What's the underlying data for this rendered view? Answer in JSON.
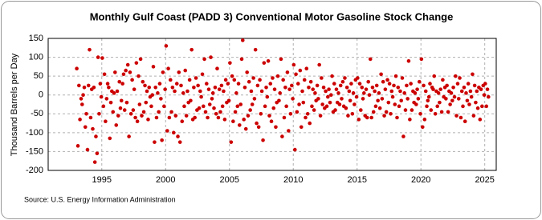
{
  "chart_data": {
    "type": "scatter",
    "title": "Monthly Gulf Coast (PADD 3) Conventional Motor Gasoline Stock Change",
    "y_label": "Thousand Barrels per Day",
    "source": "Source: U.S. Energy Information Administration",
    "color": "#cc0000",
    "grid": true,
    "xlim": [
      1990.8,
      2025.9
    ],
    "xticks": [
      1995,
      2000,
      2005,
      2010,
      2015,
      2020,
      2025
    ],
    "ylim": [
      -200,
      150
    ],
    "yticks": [
      -200,
      -150,
      -100,
      -50,
      0,
      50,
      100,
      150
    ],
    "x": [
      1993.04,
      1993.13,
      1993.21,
      1993.29,
      1993.38,
      1993.46,
      1993.54,
      1993.63,
      1993.71,
      1993.79,
      1993.88,
      1993.96,
      1994.04,
      1994.13,
      1994.21,
      1994.29,
      1994.38,
      1994.46,
      1994.54,
      1994.63,
      1994.71,
      1994.79,
      1994.88,
      1994.96,
      1995.04,
      1995.13,
      1995.21,
      1995.29,
      1995.38,
      1995.46,
      1995.54,
      1995.63,
      1995.71,
      1995.79,
      1995.88,
      1995.96,
      1996.04,
      1996.13,
      1996.21,
      1996.29,
      1996.38,
      1996.46,
      1996.54,
      1996.63,
      1996.71,
      1996.79,
      1996.88,
      1996.96,
      1997.04,
      1997.13,
      1997.21,
      1997.29,
      1997.38,
      1997.46,
      1997.54,
      1997.63,
      1997.71,
      1997.79,
      1997.88,
      1997.96,
      1998.04,
      1998.13,
      1998.21,
      1998.29,
      1998.38,
      1998.46,
      1998.54,
      1998.63,
      1998.71,
      1998.79,
      1998.88,
      1998.96,
      1999.04,
      1999.13,
      1999.21,
      1999.29,
      1999.38,
      1999.46,
      1999.54,
      1999.63,
      1999.71,
      1999.79,
      1999.88,
      1999.96,
      2000.04,
      2000.13,
      2000.21,
      2000.29,
      2000.38,
      2000.46,
      2000.54,
      2000.63,
      2000.71,
      2000.79,
      2000.88,
      2000.96,
      2001.04,
      2001.13,
      2001.21,
      2001.29,
      2001.38,
      2001.46,
      2001.54,
      2001.63,
      2001.71,
      2001.79,
      2001.88,
      2001.96,
      2002.04,
      2002.13,
      2002.21,
      2002.29,
      2002.38,
      2002.46,
      2002.54,
      2002.63,
      2002.71,
      2002.79,
      2002.88,
      2002.96,
      2003.04,
      2003.13,
      2003.21,
      2003.29,
      2003.38,
      2003.46,
      2003.54,
      2003.63,
      2003.71,
      2003.79,
      2003.88,
      2003.96,
      2004.04,
      2004.13,
      2004.21,
      2004.29,
      2004.38,
      2004.46,
      2004.54,
      2004.63,
      2004.71,
      2004.79,
      2004.88,
      2004.96,
      2005.04,
      2005.13,
      2005.21,
      2005.29,
      2005.38,
      2005.46,
      2005.54,
      2005.63,
      2005.71,
      2005.79,
      2005.88,
      2005.96,
      2006.04,
      2006.13,
      2006.21,
      2006.29,
      2006.38,
      2006.46,
      2006.54,
      2006.63,
      2006.71,
      2006.79,
      2006.88,
      2006.96,
      2007.04,
      2007.13,
      2007.21,
      2007.29,
      2007.38,
      2007.46,
      2007.54,
      2007.63,
      2007.71,
      2007.79,
      2007.88,
      2007.96,
      2008.04,
      2008.13,
      2008.21,
      2008.29,
      2008.38,
      2008.46,
      2008.54,
      2008.63,
      2008.71,
      2008.79,
      2008.88,
      2008.96,
      2009.04,
      2009.13,
      2009.21,
      2009.29,
      2009.38,
      2009.46,
      2009.54,
      2009.63,
      2009.71,
      2009.79,
      2009.88,
      2009.96,
      2010.04,
      2010.13,
      2010.21,
      2010.29,
      2010.38,
      2010.46,
      2010.54,
      2010.63,
      2010.71,
      2010.79,
      2010.88,
      2010.96,
      2011.04,
      2011.13,
      2011.21,
      2011.29,
      2011.38,
      2011.46,
      2011.54,
      2011.63,
      2011.71,
      2011.79,
      2011.88,
      2011.96,
      2012.04,
      2012.13,
      2012.21,
      2012.29,
      2012.38,
      2012.46,
      2012.54,
      2012.63,
      2012.71,
      2012.79,
      2012.88,
      2012.96,
      2013.04,
      2013.13,
      2013.21,
      2013.29,
      2013.38,
      2013.46,
      2013.54,
      2013.63,
      2013.71,
      2013.79,
      2013.88,
      2013.96,
      2014.04,
      2014.13,
      2014.21,
      2014.29,
      2014.38,
      2014.46,
      2014.54,
      2014.63,
      2014.71,
      2014.79,
      2014.88,
      2014.96,
      2015.04,
      2015.13,
      2015.21,
      2015.29,
      2015.38,
      2015.46,
      2015.54,
      2015.63,
      2015.71,
      2015.79,
      2015.88,
      2015.96,
      2016.04,
      2016.13,
      2016.21,
      2016.29,
      2016.38,
      2016.46,
      2016.54,
      2016.63,
      2016.71,
      2016.79,
      2016.88,
      2016.96,
      2017.04,
      2017.13,
      2017.21,
      2017.29,
      2017.38,
      2017.46,
      2017.54,
      2017.63,
      2017.71,
      2017.79,
      2017.88,
      2017.96,
      2018.04,
      2018.13,
      2018.21,
      2018.29,
      2018.38,
      2018.46,
      2018.54,
      2018.63,
      2018.71,
      2018.79,
      2018.88,
      2018.96,
      2019.04,
      2019.13,
      2019.21,
      2019.29,
      2019.38,
      2019.46,
      2019.54,
      2019.63,
      2019.71,
      2019.79,
      2019.88,
      2019.96,
      2020.04,
      2020.13,
      2020.21,
      2020.29,
      2020.38,
      2020.46,
      2020.54,
      2020.63,
      2020.71,
      2020.79,
      2020.88,
      2020.96,
      2021.04,
      2021.13,
      2021.21,
      2021.29,
      2021.38,
      2021.46,
      2021.54,
      2021.63,
      2021.71,
      2021.79,
      2021.88,
      2021.96,
      2022.04,
      2022.13,
      2022.21,
      2022.29,
      2022.38,
      2022.46,
      2022.54,
      2022.63,
      2022.71,
      2022.79,
      2022.88,
      2022.96,
      2023.04,
      2023.13,
      2023.21,
      2023.29,
      2023.38,
      2023.46,
      2023.54,
      2023.63,
      2023.71,
      2023.79,
      2023.88,
      2023.96,
      2024.04,
      2024.13,
      2024.21,
      2024.29,
      2024.38,
      2024.46,
      2024.54,
      2024.63,
      2024.71,
      2024.79,
      2024.88,
      2024.96,
      2025.04,
      2025.13,
      2025.21,
      2025.29
    ],
    "values": [
      70,
      -135,
      25,
      -65,
      -10,
      -25,
      0,
      20,
      -85,
      -50,
      -145,
      25,
      120,
      -60,
      15,
      -90,
      20,
      -178,
      -110,
      -155,
      100,
      -50,
      30,
      -5,
      98,
      -30,
      55,
      -70,
      -10,
      30,
      20,
      -115,
      -20,
      10,
      -45,
      5,
      60,
      -80,
      10,
      -55,
      35,
      -35,
      -15,
      30,
      55,
      -40,
      65,
      -20,
      80,
      -110,
      60,
      -50,
      40,
      -40,
      15,
      -60,
      85,
      -70,
      50,
      -25,
      95,
      -55,
      35,
      -45,
      25,
      -20,
      10,
      -65,
      20,
      -5,
      -30,
      0,
      75,
      -125,
      20,
      -60,
      5,
      -45,
      30,
      -10,
      -120,
      60,
      -30,
      15,
      130,
      -95,
      70,
      -60,
      40,
      -45,
      20,
      -100,
      10,
      -55,
      30,
      -110,
      60,
      -125,
      25,
      -70,
      5,
      -30,
      65,
      -55,
      10,
      -20,
      40,
      -15,
      120,
      -65,
      20,
      -60,
      45,
      -40,
      25,
      -35,
      10,
      -5,
      55,
      -30,
      95,
      -45,
      30,
      -60,
      15,
      -25,
      100,
      -10,
      5,
      -35,
      20,
      -50,
      70,
      -60,
      15,
      -45,
      25,
      -30,
      10,
      -65,
      40,
      -20,
      30,
      -15,
      85,
      -125,
      50,
      -70,
      40,
      -45,
      5,
      -30,
      30,
      -80,
      -25,
      95,
      145,
      -65,
      20,
      -90,
      60,
      -55,
      35,
      -40,
      10,
      -25,
      45,
      -10,
      120,
      -75,
      25,
      -85,
      40,
      -50,
      10,
      -120,
      85,
      -30,
      20,
      -5,
      90,
      -55,
      30,
      -70,
      45,
      -35,
      15,
      -85,
      -20,
      50,
      -15,
      5,
      95,
      -110,
      40,
      -60,
      20,
      -30,
      60,
      -95,
      15,
      -50,
      25,
      -10,
      80,
      -145,
      55,
      -45,
      30,
      -25,
      65,
      -85,
      10,
      -20,
      40,
      -60,
      70,
      -50,
      20,
      -75,
      35,
      -30,
      15,
      -40,
      5,
      -15,
      25,
      -10,
      80,
      -55,
      45,
      -25,
      20,
      -35,
      10,
      -30,
      -5,
      15,
      -20,
      0,
      50,
      -45,
      30,
      -40,
      15,
      -20,
      5,
      -25,
      25,
      -10,
      35,
      -30,
      45,
      -35,
      20,
      -55,
      10,
      -15,
      30,
      -50,
      5,
      -25,
      40,
      -5,
      45,
      -65,
      30,
      -40,
      20,
      -10,
      5,
      -55,
      15,
      -60,
      35,
      0,
      95,
      -60,
      20,
      -45,
      10,
      -30,
      25,
      -15,
      5,
      -35,
      55,
      -10,
      35,
      -55,
      15,
      -45,
      40,
      -20,
      30,
      -50,
      10,
      -5,
      25,
      -25,
      50,
      -60,
      20,
      -30,
      10,
      -15,
      45,
      -110,
      5,
      -40,
      25,
      -10,
      90,
      -65,
      30,
      -40,
      10,
      -20,
      5,
      -25,
      15,
      -10,
      35,
      -50,
      95,
      -85,
      25,
      -65,
      10,
      -30,
      -15,
      -5,
      30,
      -40,
      20,
      15,
      50,
      -50,
      10,
      -30,
      5,
      -20,
      15,
      -45,
      40,
      -5,
      20,
      -10,
      25,
      -45,
      10,
      -25,
      5,
      -15,
      20,
      -5,
      50,
      -55,
      30,
      -10,
      45,
      -60,
      10,
      -30,
      20,
      -70,
      5,
      -15,
      30,
      -25,
      10,
      -5,
      55,
      -55,
      25,
      -20,
      10,
      -35,
      20,
      -65,
      15,
      -30,
      25,
      0,
      30,
      -30,
      15,
      -5
    ]
  }
}
